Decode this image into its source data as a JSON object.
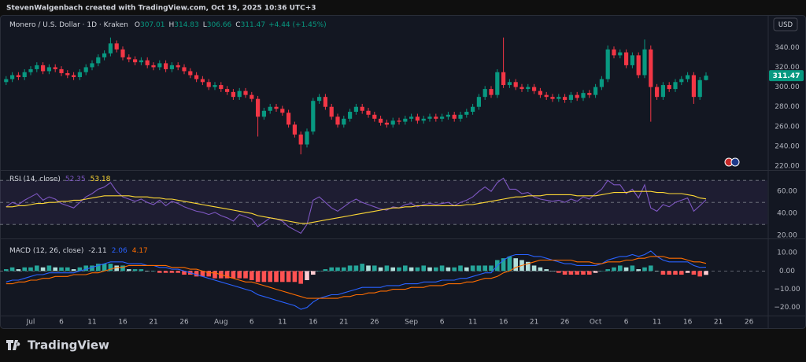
{
  "header": {
    "author_line": "StevenWalgenbach created with TradingView.com, Oct 19, 2025 10:36 UTC+3"
  },
  "footer": {
    "brand": "TradingView"
  },
  "currency_button": "USD",
  "chart_data": [
    {
      "type": "candlestick",
      "title": "Monero / U.S. Dollar · 1D · Kraken",
      "legend_labels": [
        "O",
        "H",
        "L",
        "C"
      ],
      "change_label": "+4.44 (+1.45%)",
      "up_color": "#089981",
      "down_color": "#f23645",
      "open": [
        305,
        308,
        312,
        310,
        315,
        318,
        322,
        316,
        320,
        318,
        314,
        312,
        310,
        315,
        320,
        324,
        330,
        334,
        344,
        338,
        330,
        328,
        325,
        327,
        322,
        320,
        324,
        318,
        322,
        320,
        316,
        312,
        308,
        305,
        300,
        302,
        298,
        295,
        290,
        296,
        292,
        288,
        270,
        276,
        280,
        278,
        274,
        262,
        252,
        242,
        255,
        286,
        290,
        280,
        270,
        262,
        268,
        275,
        280,
        276,
        272,
        268,
        264,
        262,
        266,
        265,
        268,
        270,
        266,
        268,
        270,
        268,
        270,
        272,
        268,
        272,
        275,
        280,
        290,
        298,
        292,
        315,
        302,
        305,
        300,
        298,
        300,
        296,
        292,
        290,
        288,
        290,
        287,
        292,
        289,
        294,
        292,
        300,
        308,
        338,
        332,
        335,
        322,
        332,
        312,
        338,
        300,
        290,
        302,
        298,
        305,
        308,
        312,
        290,
        307.01
      ],
      "high": [
        311,
        315,
        315,
        318,
        321,
        325,
        325,
        323,
        323,
        321,
        317,
        315,
        318,
        323,
        327,
        333,
        337,
        350,
        347,
        341,
        333,
        331,
        330,
        330,
        325,
        327,
        327,
        325,
        325,
        323,
        319,
        315,
        311,
        308,
        305,
        305,
        301,
        298,
        299,
        299,
        295,
        291,
        279,
        283,
        283,
        281,
        277,
        265,
        255,
        258,
        289,
        293,
        293,
        283,
        273,
        271,
        278,
        283,
        283,
        279,
        275,
        271,
        267,
        269,
        269,
        271,
        273,
        273,
        271,
        273,
        273,
        273,
        275,
        275,
        275,
        278,
        283,
        293,
        301,
        301,
        318,
        350,
        308,
        308,
        303,
        303,
        303,
        299,
        295,
        293,
        293,
        293,
        295,
        295,
        297,
        297,
        303,
        311,
        342,
        341,
        338,
        338,
        335,
        335,
        348,
        342,
        303,
        305,
        305,
        308,
        311,
        315,
        315,
        310,
        314.83
      ],
      "low": [
        302,
        305,
        307,
        307,
        312,
        315,
        313,
        313,
        315,
        311,
        309,
        307,
        307,
        312,
        317,
        321,
        327,
        331,
        335,
        327,
        325,
        322,
        322,
        319,
        317,
        317,
        315,
        315,
        317,
        313,
        309,
        305,
        302,
        297,
        297,
        295,
        292,
        287,
        287,
        289,
        285,
        250,
        267,
        273,
        275,
        271,
        259,
        249,
        232,
        239,
        252,
        283,
        277,
        267,
        259,
        259,
        265,
        272,
        273,
        269,
        265,
        261,
        259,
        259,
        262,
        262,
        265,
        263,
        263,
        265,
        265,
        265,
        267,
        265,
        265,
        269,
        272,
        277,
        287,
        289,
        289,
        299,
        299,
        297,
        295,
        295,
        293,
        289,
        287,
        285,
        285,
        284,
        284,
        286,
        286,
        289,
        289,
        297,
        305,
        329,
        329,
        319,
        319,
        309,
        309,
        265,
        287,
        287,
        295,
        295,
        302,
        305,
        283,
        287,
        306.66
      ],
      "close": [
        308,
        312,
        310,
        315,
        318,
        322,
        316,
        320,
        318,
        314,
        312,
        310,
        315,
        320,
        324,
        330,
        334,
        344,
        338,
        330,
        328,
        325,
        327,
        322,
        320,
        324,
        318,
        322,
        320,
        316,
        312,
        308,
        305,
        300,
        302,
        298,
        295,
        290,
        296,
        292,
        288,
        270,
        276,
        280,
        278,
        274,
        262,
        252,
        242,
        255,
        286,
        290,
        280,
        270,
        262,
        268,
        275,
        280,
        276,
        272,
        268,
        264,
        262,
        266,
        265,
        268,
        270,
        266,
        268,
        270,
        268,
        270,
        272,
        268,
        272,
        275,
        280,
        290,
        298,
        292,
        315,
        302,
        305,
        300,
        298,
        300,
        296,
        292,
        290,
        288,
        290,
        287,
        292,
        289,
        294,
        292,
        300,
        308,
        338,
        332,
        335,
        322,
        332,
        312,
        338,
        300,
        290,
        302,
        298,
        305,
        308,
        312,
        290,
        307,
        311.47
      ],
      "ylim": [
        217,
        372
      ],
      "yticks": [
        {
          "value": 220,
          "label": "220.00"
        },
        {
          "value": 240,
          "label": "240.00"
        },
        {
          "value": 260,
          "label": "260.00"
        },
        {
          "value": 280,
          "label": "280.00"
        },
        {
          "value": 300,
          "label": "300.00"
        },
        {
          "value": 320,
          "label": "320.00"
        },
        {
          "value": 340,
          "label": "340.00"
        }
      ],
      "xlim": [
        -1,
        124
      ],
      "xticks": [
        {
          "value": 4,
          "label": "Jul"
        },
        {
          "value": 9,
          "label": "6"
        },
        {
          "value": 14,
          "label": "11"
        },
        {
          "value": 19,
          "label": "16"
        },
        {
          "value": 24,
          "label": "21"
        },
        {
          "value": 29,
          "label": "26"
        },
        {
          "value": 35,
          "label": "Aug"
        },
        {
          "value": 40,
          "label": "6"
        },
        {
          "value": 45,
          "label": "11"
        },
        {
          "value": 50,
          "label": "16"
        },
        {
          "value": 55,
          "label": "21"
        },
        {
          "value": 60,
          "label": "26"
        },
        {
          "value": 66,
          "label": "Sep"
        },
        {
          "value": 71,
          "label": "6"
        },
        {
          "value": 76,
          "label": "11"
        },
        {
          "value": 81,
          "label": "16"
        },
        {
          "value": 86,
          "label": "21"
        },
        {
          "value": 91,
          "label": "26"
        },
        {
          "value": 96,
          "label": "Oct"
        },
        {
          "value": 101,
          "label": "6"
        },
        {
          "value": 106,
          "label": "11"
        },
        {
          "value": 111,
          "label": "16"
        },
        {
          "value": 116,
          "label": "21"
        },
        {
          "value": 121,
          "label": "26"
        }
      ]
    },
    {
      "type": "line",
      "title": "RSI (14, close)",
      "series": [
        {
          "color": "#7e57c2",
          "values": [
            46,
            50,
            48,
            52,
            55,
            58,
            52,
            55,
            53,
            49,
            47,
            45,
            50,
            55,
            58,
            62,
            64,
            68,
            60,
            55,
            53,
            51,
            53,
            50,
            48,
            52,
            47,
            51,
            49,
            46,
            44,
            42,
            41,
            39,
            41,
            38,
            36,
            33,
            39,
            37,
            35,
            28,
            32,
            36,
            35,
            33,
            28,
            25,
            22,
            30,
            52,
            55,
            50,
            45,
            42,
            46,
            50,
            53,
            50,
            48,
            46,
            44,
            43,
            46,
            45,
            48,
            49,
            46,
            48,
            49,
            48,
            49,
            50,
            47,
            50,
            52,
            55,
            60,
            64,
            60,
            68,
            72,
            62,
            62,
            58,
            59,
            55,
            53,
            52,
            51,
            52,
            50,
            53,
            51,
            55,
            53,
            58,
            62,
            70,
            66,
            66,
            58,
            62,
            54,
            66,
            45,
            42,
            48,
            46,
            50,
            52,
            54,
            42,
            47,
            52.35
          ]
        },
        {
          "color": "#fdd835",
          "values": [
            46,
            46,
            47,
            47,
            48,
            49,
            49,
            50,
            50,
            51,
            51,
            52,
            52,
            53,
            54,
            55,
            56,
            56,
            56,
            56,
            56,
            55,
            55,
            55,
            54,
            54,
            53,
            53,
            52,
            51,
            50,
            49,
            48,
            47,
            46,
            45,
            44,
            43,
            42,
            41,
            40,
            38,
            37,
            36,
            35,
            34,
            33,
            32,
            31,
            31,
            32,
            33,
            34,
            35,
            36,
            37,
            38,
            39,
            40,
            41,
            42,
            43,
            44,
            45,
            45,
            46,
            46,
            47,
            47,
            47,
            47,
            47,
            47,
            47,
            47,
            48,
            48,
            49,
            50,
            51,
            52,
            53,
            54,
            55,
            55,
            56,
            56,
            56,
            57,
            57,
            57,
            57,
            57,
            56,
            56,
            56,
            56,
            57,
            58,
            59,
            59,
            59,
            60,
            60,
            60,
            60,
            59,
            59,
            58,
            58,
            58,
            57,
            56,
            54,
            53.18
          ]
        }
      ],
      "levels": [
        70,
        50,
        30
      ],
      "band_color": "#7e57c2",
      "ylim": [
        18,
        78
      ],
      "yticks": [
        {
          "value": 20,
          "label": "20.00"
        },
        {
          "value": 40,
          "label": "40.00"
        },
        {
          "value": 60,
          "label": "60.00"
        }
      ]
    },
    {
      "type": "macd",
      "title": "MACD (12, 26, close)",
      "histogram": {
        "values": [
          1,
          2,
          1,
          2,
          2,
          3,
          2,
          3,
          2,
          2,
          2,
          1,
          2,
          3,
          3,
          4,
          4,
          4,
          3,
          3,
          1,
          1,
          1,
          0,
          0,
          -1,
          -1,
          -1,
          -1,
          -2,
          -2,
          -3,
          -3,
          -3,
          -4,
          -4,
          -4,
          -4,
          -4,
          -4,
          -5,
          -6,
          -6,
          -6,
          -6,
          -6,
          -6,
          -6,
          -7,
          -5,
          -2,
          0,
          1,
          2,
          2,
          2,
          3,
          3,
          4,
          3,
          3,
          2,
          3,
          2,
          2,
          3,
          2,
          2,
          3,
          2,
          2,
          3,
          2,
          2,
          3,
          2,
          3,
          3,
          3,
          3,
          6,
          7,
          8,
          7,
          6,
          5,
          3,
          2,
          1,
          0,
          -1,
          -2,
          -2,
          -2,
          -2,
          -2,
          -1,
          0,
          1,
          2,
          3,
          2,
          3,
          1,
          2,
          3,
          0,
          -2,
          -2,
          -2,
          -2,
          -1,
          -2,
          -3,
          -2.11
        ],
        "colors": {
          "up_rising": "#26a69a",
          "up_falling": "#b2dfdb",
          "down_falling": "#ff5252",
          "down_rising": "#ffcdd2"
        }
      },
      "series": [
        {
          "color": "#2962ff",
          "values": [
            -6,
            -5,
            -5,
            -4,
            -3,
            -2,
            -2,
            -1,
            -1,
            -1,
            -1,
            -1,
            0,
            1,
            2,
            3,
            4,
            5,
            5,
            5,
            4,
            4,
            4,
            3,
            3,
            2,
            2,
            1,
            1,
            0,
            -1,
            -2,
            -3,
            -4,
            -5,
            -6,
            -7,
            -8,
            -9,
            -10,
            -11,
            -13,
            -14,
            -15,
            -16,
            -17,
            -18,
            -19,
            -21,
            -20,
            -17,
            -15,
            -14,
            -13,
            -13,
            -12,
            -11,
            -10,
            -9,
            -9,
            -9,
            -9,
            -8,
            -8,
            -8,
            -7,
            -7,
            -7,
            -6,
            -6,
            -6,
            -5,
            -5,
            -5,
            -4,
            -4,
            -3,
            -2,
            -1,
            -1,
            3,
            6,
            8,
            9,
            9,
            9,
            8,
            8,
            7,
            6,
            5,
            4,
            4,
            3,
            3,
            3,
            3,
            4,
            6,
            7,
            8,
            8,
            9,
            8,
            9,
            11,
            8,
            6,
            5,
            5,
            5,
            5,
            3,
            2,
            2.06
          ]
        },
        {
          "color": "#ff6d00",
          "values": [
            -7,
            -7,
            -6,
            -6,
            -5,
            -5,
            -4,
            -4,
            -3,
            -3,
            -3,
            -2,
            -2,
            -2,
            -1,
            -1,
            0,
            1,
            2,
            2,
            3,
            3,
            3,
            3,
            3,
            3,
            3,
            2,
            2,
            2,
            1,
            1,
            0,
            -1,
            -1,
            -2,
            -3,
            -4,
            -5,
            -6,
            -6,
            -7,
            -8,
            -9,
            -10,
            -11,
            -12,
            -13,
            -14,
            -15,
            -15,
            -15,
            -15,
            -15,
            -15,
            -14,
            -14,
            -13,
            -13,
            -12,
            -12,
            -11,
            -11,
            -10,
            -10,
            -10,
            -9,
            -9,
            -9,
            -8,
            -8,
            -8,
            -7,
            -7,
            -7,
            -6,
            -6,
            -5,
            -4,
            -4,
            -3,
            -1,
            0,
            2,
            3,
            4,
            5,
            6,
            6,
            6,
            6,
            6,
            6,
            5,
            5,
            5,
            4,
            4,
            5,
            5,
            5,
            6,
            6,
            7,
            7,
            8,
            8,
            8,
            7,
            7,
            7,
            6,
            5,
            5,
            4.17
          ]
        }
      ],
      "ylim": [
        -24,
        17
      ],
      "yticks": [
        {
          "value": -20,
          "label": "−20.00"
        },
        {
          "value": -10,
          "label": "−10.00"
        },
        {
          "value": 0,
          "label": "0.00"
        },
        {
          "value": 10,
          "label": "10.00"
        }
      ]
    }
  ]
}
